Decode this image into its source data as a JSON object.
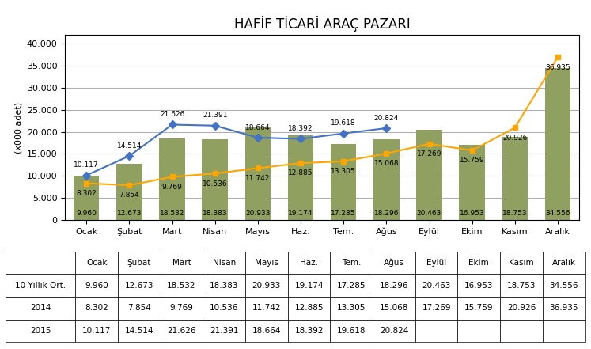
{
  "chart_data": {
    "type": "bar",
    "title": "HAFİF TİCARİ ARAÇ PAZARI",
    "ylabel": "(x000 adet)",
    "categories": [
      "Ocak",
      "Şubat",
      "Mart",
      "Nisan",
      "Mayıs",
      "Haz.",
      "Tem.",
      "Ağus",
      "Eylül",
      "Ekim",
      "Kasım",
      "Aralık"
    ],
    "series": [
      {
        "name": "10 Yıllık Ort.",
        "type": "bar",
        "color": "#8fA060",
        "values": [
          9960,
          12673,
          18532,
          18383,
          20933,
          19174,
          17285,
          18296,
          20463,
          16953,
          18753,
          34556
        ],
        "value_labels": [
          "9.960",
          "12.673",
          "18.532",
          "18.383",
          "20.933",
          "19.174",
          "17.285",
          "18.296",
          "20.463",
          "16.953",
          "18.753",
          "34.556"
        ]
      },
      {
        "name": "2014",
        "type": "line",
        "color": "#FFA500",
        "marker": "square",
        "line_style": "solid",
        "values": [
          8302,
          7854,
          9769,
          10536,
          11742,
          12885,
          13305,
          15068,
          17269,
          15759,
          20926,
          36935
        ],
        "value_labels": [
          "8.302",
          "7.854",
          "9.769",
          "10.536",
          "11.742",
          "12.885",
          "13.305",
          "15.068",
          "17.269",
          "15.759",
          "20.926",
          "36.935"
        ]
      },
      {
        "name": "2015",
        "type": "line",
        "color": "#4472C4",
        "marker": "diamond",
        "line_style": "solid",
        "values": [
          10117,
          14514,
          21626,
          21391,
          18664,
          18392,
          19618,
          20824,
          null,
          null,
          null,
          null
        ],
        "value_labels": [
          "10.117",
          "14.514",
          "21.626",
          "21.391",
          "18.664",
          "18.392",
          "19.618",
          "20.824",
          null,
          null,
          null,
          null
        ]
      }
    ],
    "ylim": [
      0,
      42000
    ],
    "yticks": [
      0,
      {
        "value": 5000,
        "label": "5.000"
      },
      {
        "value": 10000,
        "label": "10.000"
      },
      {
        "value": 15000,
        "label": "15.000"
      },
      {
        "value": 20000,
        "label": "20.000"
      },
      {
        "value": 25000,
        "label": "25.000"
      },
      {
        "value": 30000,
        "label": "30.000"
      },
      {
        "value": 35000,
        "label": "35.000"
      },
      {
        "value": 40000,
        "label": "40.000"
      }
    ],
    "grid": true,
    "data_labels": true
  }
}
